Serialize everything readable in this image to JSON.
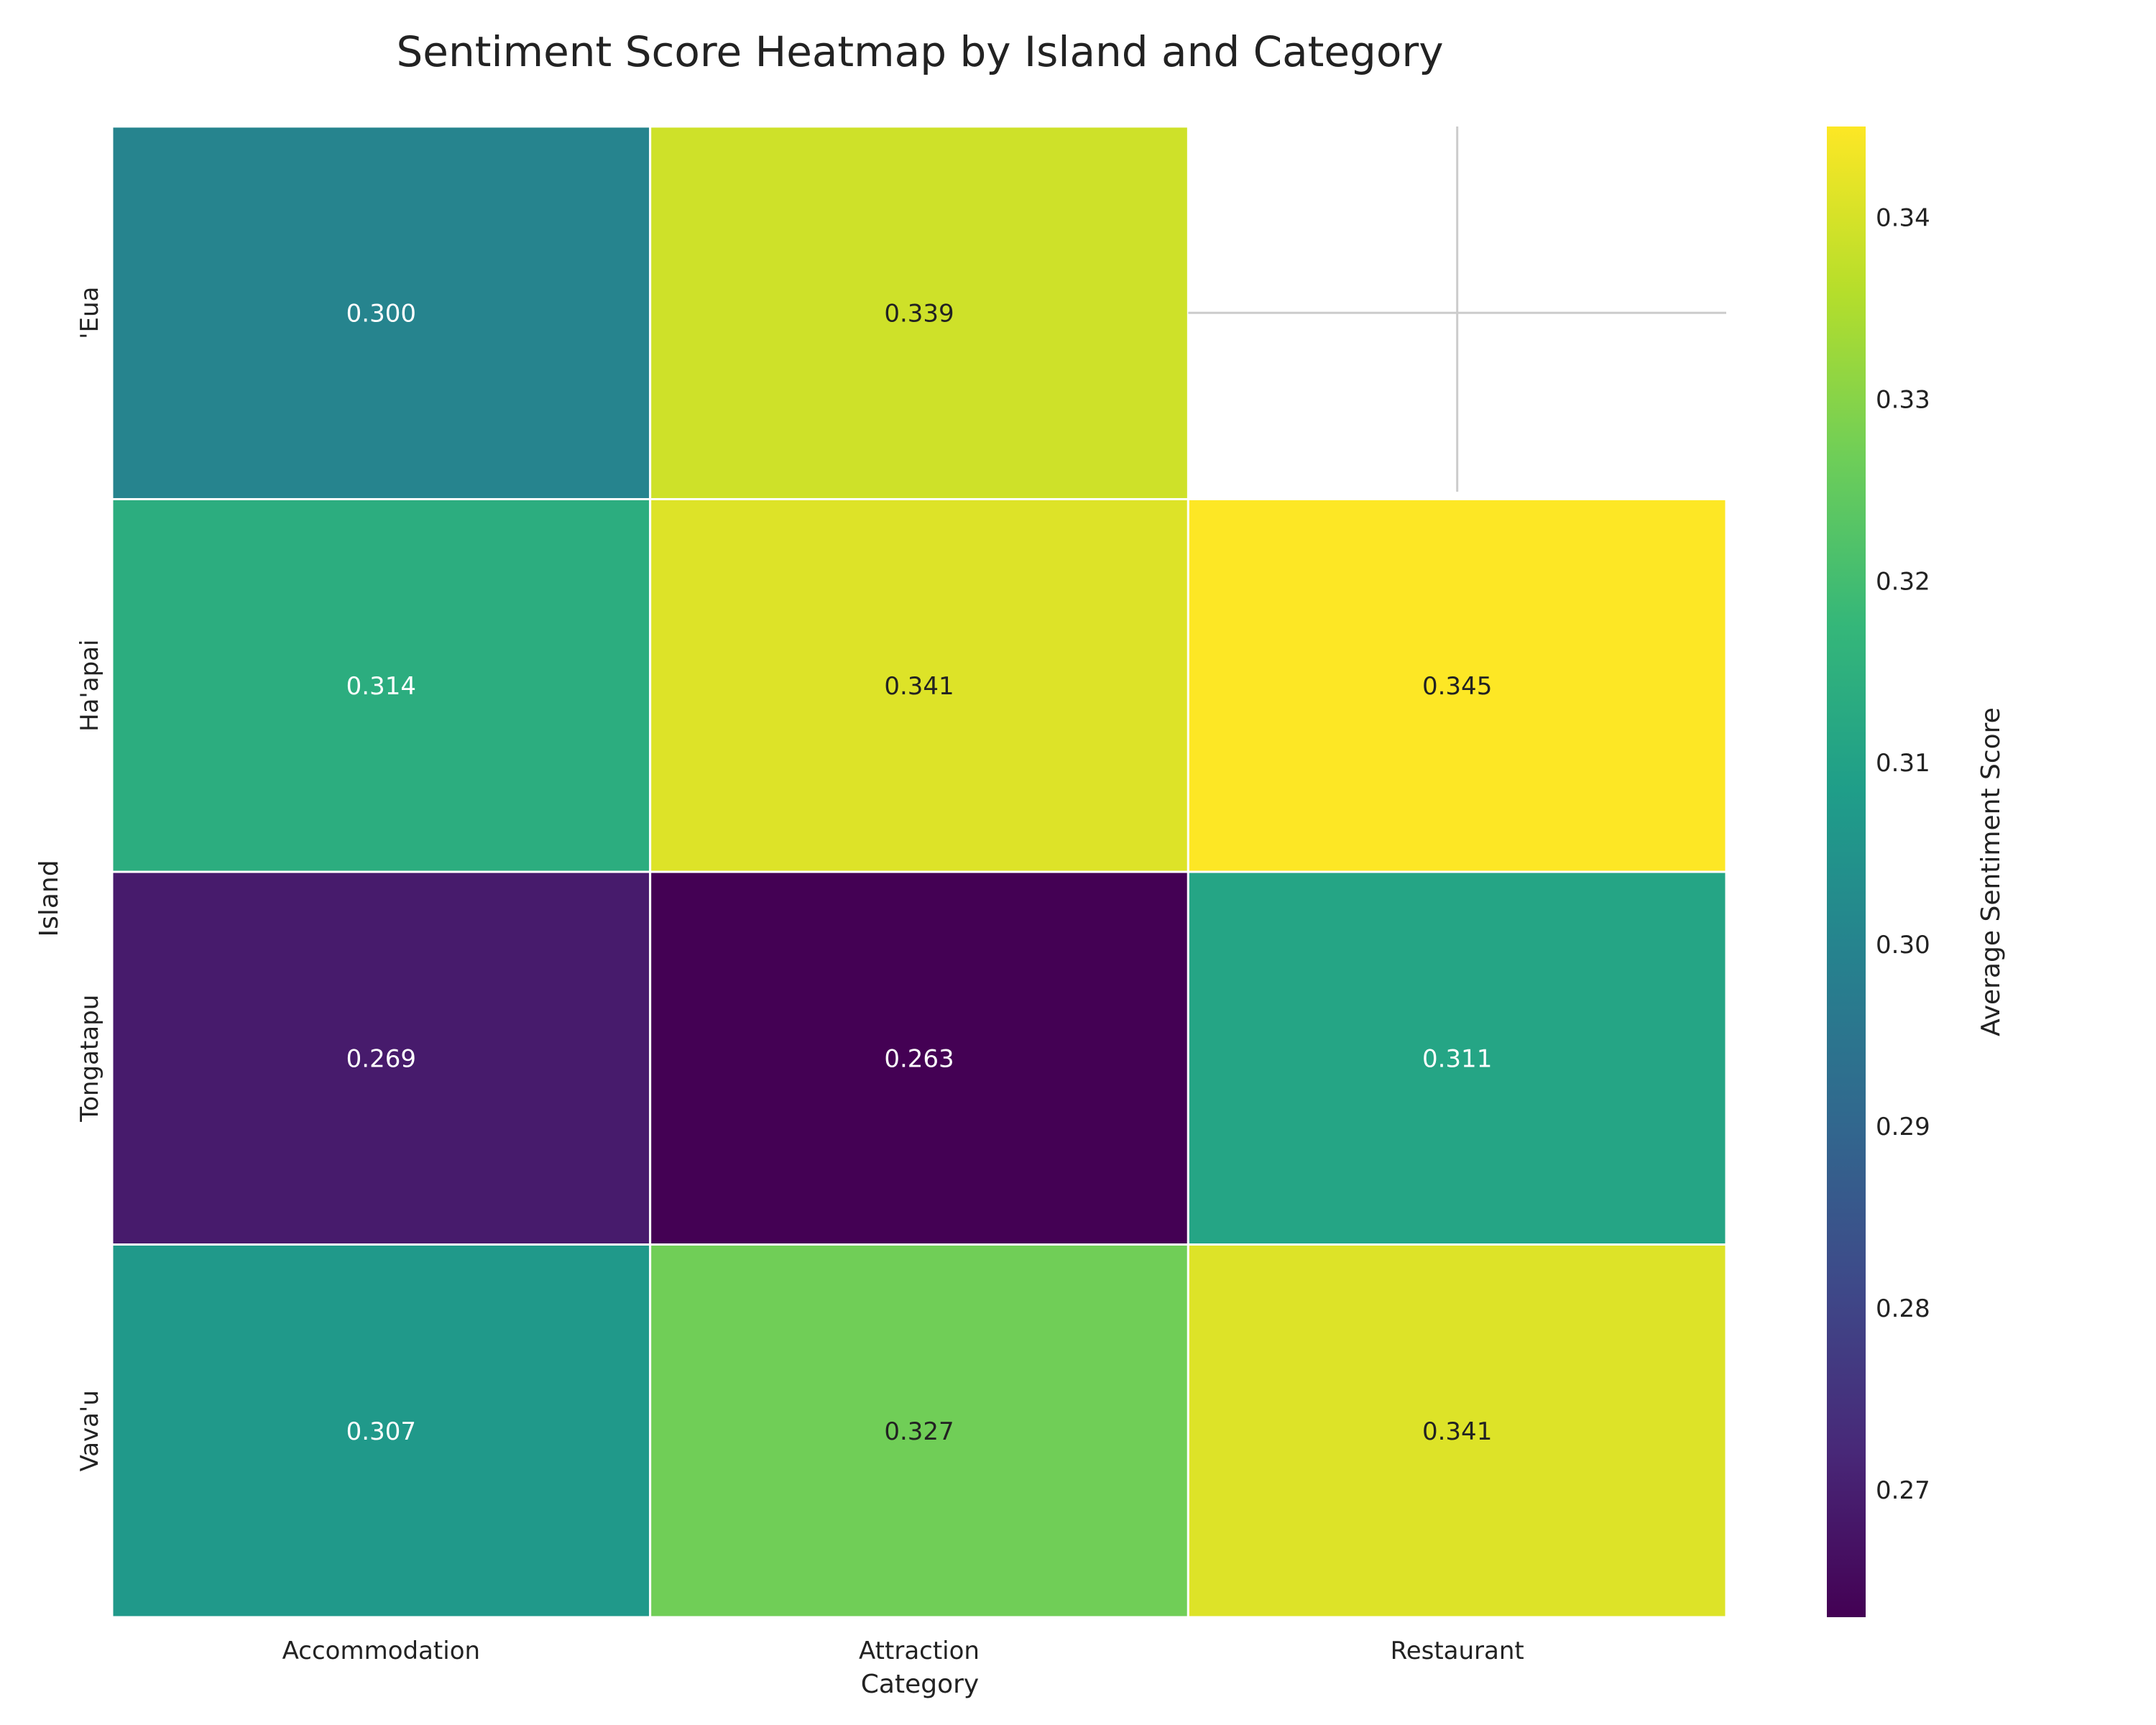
{
  "chart_data": {
    "type": "heatmap",
    "title": "Sentiment Score Heatmap by Island and Category",
    "xlabel": "Category",
    "ylabel": "Island",
    "x_categories": [
      "Accommodation",
      "Attraction",
      "Restaurant"
    ],
    "y_categories": [
      "'Eua",
      "Ha'apai",
      "Tongatapu",
      "Vava'u"
    ],
    "values": [
      [
        0.3,
        0.339,
        null
      ],
      [
        0.314,
        0.341,
        0.345
      ],
      [
        0.269,
        0.263,
        0.311
      ],
      [
        0.307,
        0.327,
        0.341
      ]
    ],
    "value_labels": [
      [
        "0.300",
        "0.339",
        ""
      ],
      [
        "0.314",
        "0.341",
        "0.345"
      ],
      [
        "0.269",
        "0.263",
        "0.311"
      ],
      [
        "0.307",
        "0.327",
        "0.341"
      ]
    ],
    "colormap": "viridis",
    "colorbar": {
      "label": "Average Sentiment Score",
      "min": 0.263,
      "max": 0.345,
      "ticks": [
        0.27,
        0.28,
        0.29,
        0.3,
        0.31,
        0.32,
        0.33,
        0.34
      ],
      "tick_labels": [
        "0.27",
        "0.28",
        "0.29",
        "0.30",
        "0.31",
        "0.32",
        "0.33",
        "0.34"
      ]
    },
    "grid": false,
    "colors": {
      "cell_border": "#ffffff",
      "missing_cell_cross": "#cccccc",
      "text_dark": "#222222",
      "text_light": "#ffffff"
    }
  }
}
